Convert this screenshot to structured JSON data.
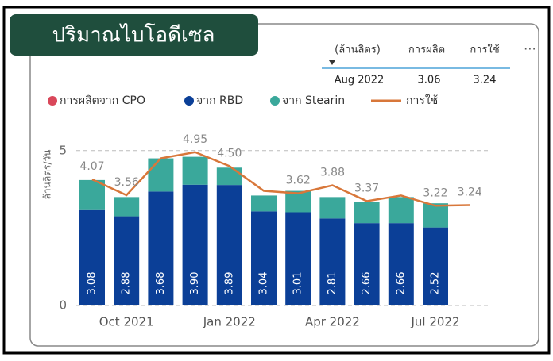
{
  "title": "ปริมาณไบโอดีเซล",
  "table": {
    "header": [
      "(ล้านลิตร)",
      "การผลิต",
      "การใช้"
    ],
    "rows": [
      [
        "Aug 2022",
        "3.06",
        "3.24"
      ]
    ]
  },
  "chart_data": {
    "type": "stacked-bar-line",
    "y_label": "ล้านลิตร/วัน",
    "categories": [
      null,
      "Oct 2021",
      null,
      null,
      "Jan 2022",
      null,
      null,
      "Apr 2022",
      null,
      null,
      "Jul 2022",
      null
    ],
    "series": [
      {
        "name": "การผลิตจาก CPO",
        "color": "#d9475a",
        "values": [
          0,
          0,
          0,
          0,
          0,
          0,
          0,
          0,
          0,
          0,
          0,
          null
        ]
      },
      {
        "name": "จาก RBD",
        "color": "#0b3f97",
        "values": [
          3.08,
          2.88,
          3.68,
          3.9,
          3.89,
          3.04,
          3.01,
          2.81,
          2.66,
          2.66,
          2.52,
          null
        ],
        "value_labels": [
          "3.08",
          "2.88",
          "3.68",
          "3.90",
          "3.89",
          "3.04",
          "3.01",
          "2.81",
          "2.66",
          "2.66",
          "2.52",
          null
        ]
      },
      {
        "name": "จาก Stearin",
        "color": "#3aa89b",
        "values": [
          0.97,
          0.62,
          1.07,
          0.9,
          0.56,
          0.51,
          0.69,
          0.69,
          0.69,
          0.84,
          0.78,
          null
        ]
      },
      {
        "name": "การใช้",
        "type": "line",
        "color": "#d8773a",
        "values": [
          4.07,
          3.56,
          4.75,
          4.95,
          4.5,
          3.7,
          3.62,
          3.88,
          3.37,
          3.55,
          3.22,
          3.24
        ],
        "value_labels": [
          "4.07",
          "3.56",
          null,
          "4.95",
          "4.50",
          null,
          "3.62",
          "3.88",
          "3.37",
          null,
          "3.22",
          "3.24"
        ]
      }
    ],
    "ylim": [
      0,
      5.2
    ],
    "yticks": [
      0,
      5
    ],
    "grid": true
  }
}
